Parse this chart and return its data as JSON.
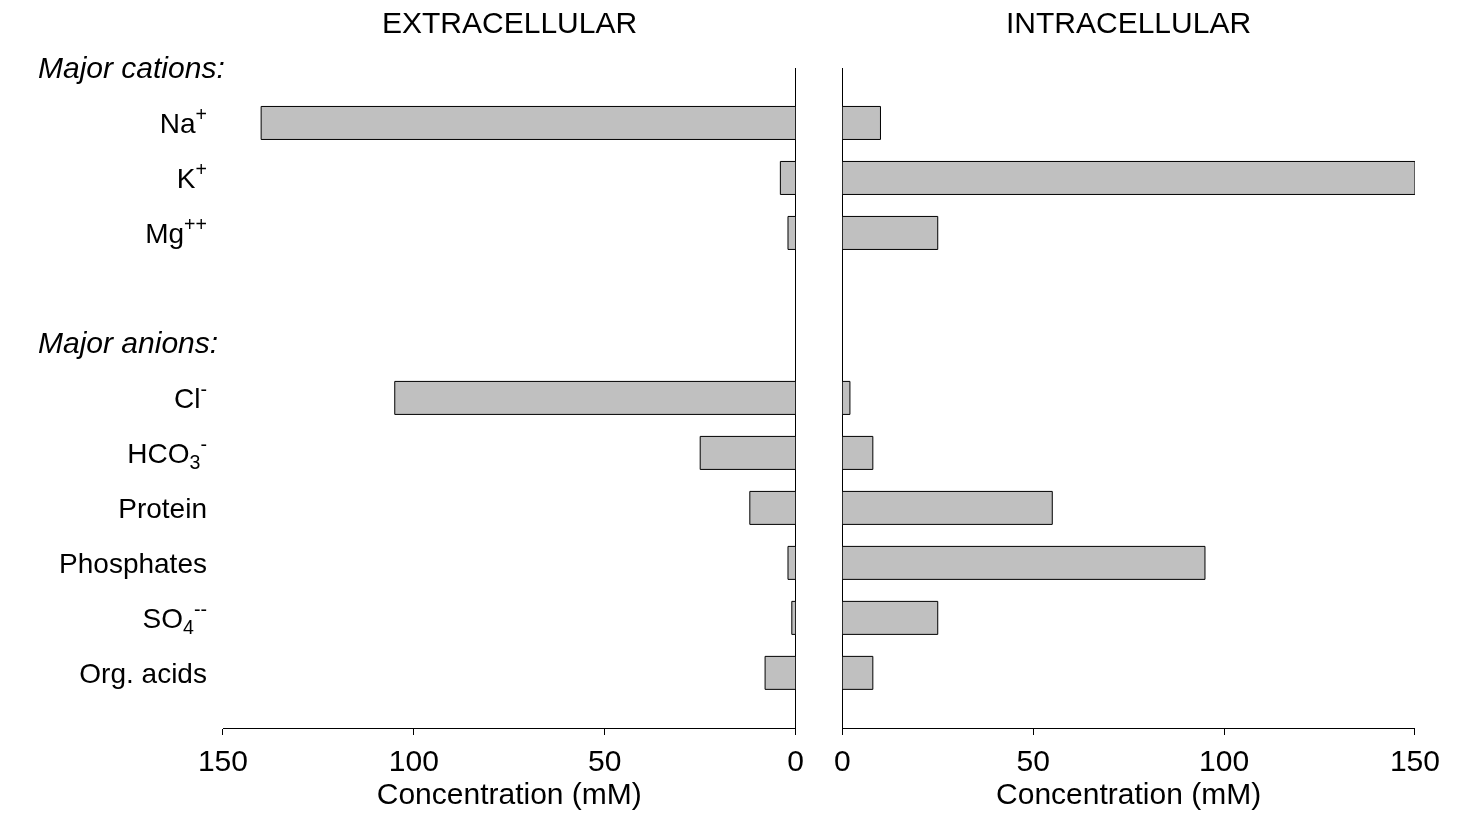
{
  "chart_data": [
    {
      "type": "bar",
      "orientation": "horizontal",
      "title": "EXTRACELLULAR",
      "xlabel": "Concentration (mM)",
      "categories": [
        "Na$^{+}$",
        "K$^{+}$",
        "Mg$^{++}$",
        null,
        null,
        "Cl$^{-}$",
        "HCO$_{3}$$^{-}$",
        "Protein",
        "Phosphates",
        "SO$_{4}$$^{--}$",
        "Org. acids"
      ],
      "values": [
        140,
        4,
        2,
        null,
        null,
        105,
        25,
        12,
        2,
        1,
        8
      ],
      "color": "#c0c0c0",
      "xlim": [
        150,
        0
      ],
      "xticks": [
        0,
        50,
        100,
        150
      ],
      "annotations": [
        "Major cations:",
        "Major anions:"
      ]
    },
    {
      "type": "bar",
      "orientation": "horizontal",
      "title": "INTRACELLULAR",
      "xlabel": "Concentration (mM)",
      "categories": [
        "Na$^{+}$",
        "K$^{+}$",
        "Mg$^{++}$",
        null,
        null,
        "Cl$^{-}$",
        "HCO$_{3}$$^{-}$",
        "Protein",
        "Phosphates",
        "SO$_{4}$$^{--}$",
        "Org. acids"
      ],
      "values": [
        10,
        150,
        25,
        null,
        null,
        2,
        8,
        55,
        95,
        25,
        8
      ],
      "color": "#c0c0c0",
      "xlim": [
        0,
        150
      ],
      "xticks": [
        0,
        50,
        100,
        150
      ],
      "tick_labels": "x"
    }
  ]
}
